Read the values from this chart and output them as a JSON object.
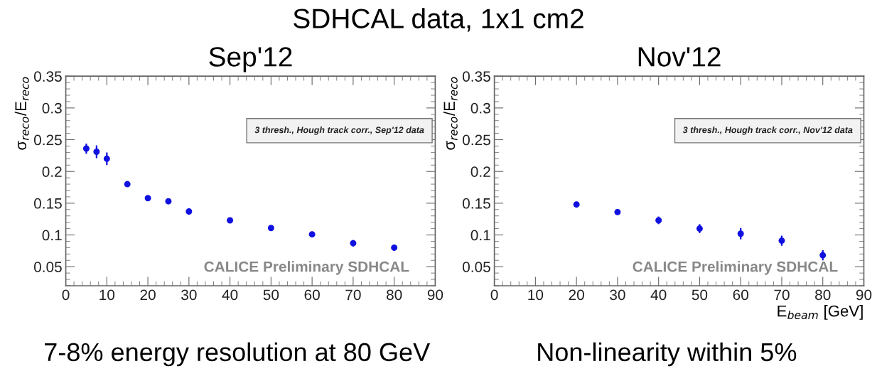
{
  "chart_data": [
    {
      "type": "scatter",
      "title": "Sep'12",
      "ylabel": "σ$_{reco}$/E$_{reco}$",
      "xlim": [
        0,
        90
      ],
      "ylim": [
        0.02,
        0.35
      ],
      "xticks": [
        0,
        10,
        20,
        30,
        40,
        50,
        60,
        70,
        80,
        90
      ],
      "yticks": [
        0.05,
        0.1,
        0.15,
        0.2,
        0.25,
        0.3,
        0.35
      ],
      "marker": "circle",
      "grid": false,
      "series": [
        {
          "color": "#1010e0",
          "x": [
            5,
            7.5,
            10,
            15,
            20,
            25,
            30,
            40,
            50,
            60,
            70,
            80
          ],
          "values": [
            0.236,
            0.231,
            0.22,
            0.18,
            0.158,
            0.153,
            0.137,
            0.123,
            0.111,
            0.101,
            0.087,
            0.08
          ],
          "errors": [
            0.008,
            0.01,
            0.01,
            0.003,
            null,
            null,
            0.005,
            null,
            0.002,
            null,
            0.005,
            0.005
          ]
        }
      ],
      "annotations": [
        "3 thresh., Hough track corr., Sep'12 data",
        "CALICE Preliminary SDHCAL",
        "SDHCAL data, 1x1 cm2",
        "7-8% energy resolution at 80 GeV"
      ]
    },
    {
      "type": "scatter",
      "title": "Nov'12",
      "ylabel": "σ$_{reco}$/E$_{reco}$",
      "xlabel": "E$_{beam}$ [GeV]",
      "xlim": [
        0,
        90
      ],
      "ylim": [
        0.02,
        0.35
      ],
      "xticks": [
        0,
        10,
        20,
        30,
        40,
        50,
        60,
        70,
        80,
        90
      ],
      "yticks": [
        0.05,
        0.1,
        0.15,
        0.2,
        0.25,
        0.3,
        0.35
      ],
      "marker": "circle",
      "grid": false,
      "series": [
        {
          "color": "#1010e0",
          "x": [
            20,
            30,
            40,
            50,
            60,
            70,
            80
          ],
          "values": [
            0.148,
            0.136,
            0.123,
            0.11,
            0.102,
            0.091,
            0.068
          ],
          "errors": [
            0.003,
            0.003,
            0.006,
            0.007,
            0.009,
            0.008,
            0.008
          ]
        }
      ],
      "annotations": [
        "3 thresh., Hough track corr., Nov'12 data",
        "CALICE Preliminary SDHCAL",
        "Non-linearity within 5%"
      ]
    }
  ]
}
